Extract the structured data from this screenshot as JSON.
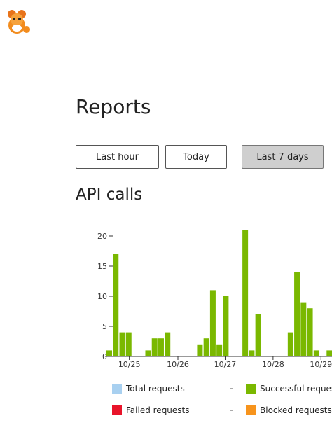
{
  "header": {
    "title": "Reports"
  },
  "buttons": [
    "Last hour",
    "Today",
    "Last 7 days"
  ],
  "section_title": "API calls",
  "chart_data": {
    "type": "bar",
    "x": [
      0,
      1,
      2,
      3,
      6,
      7,
      8,
      9,
      14,
      15,
      16,
      17,
      18,
      21,
      22,
      23,
      28,
      29,
      30,
      31,
      32,
      34
    ],
    "series": [
      {
        "name": "Successful requests",
        "color": "#7ab800",
        "values": [
          1,
          17,
          4,
          4,
          1,
          3,
          3,
          4,
          2,
          3,
          11,
          2,
          10,
          21,
          1,
          7,
          4,
          14,
          9,
          8,
          1,
          1
        ]
      }
    ],
    "legend": [
      {
        "name": "Total requests",
        "color": "#a8d0f0"
      },
      {
        "name": "Successful requests",
        "color": "#7ab800"
      },
      {
        "name": "Failed requests",
        "color": "#e8142a"
      },
      {
        "name": "Blocked requests",
        "color": "#f7941d"
      }
    ],
    "xlim": [
      -0.65,
      34.4
    ],
    "xticks": [
      {
        "value": 3.1,
        "label": "10/25"
      },
      {
        "value": 10.6,
        "label": "10/26"
      },
      {
        "value": 17.9,
        "label": "10/27"
      },
      {
        "value": 25.3,
        "label": "10/28"
      },
      {
        "value": 32.7,
        "label": "10/29"
      }
    ],
    "ylim": [
      0,
      21
    ],
    "yticks": [
      0,
      5,
      10,
      15,
      20
    ]
  }
}
